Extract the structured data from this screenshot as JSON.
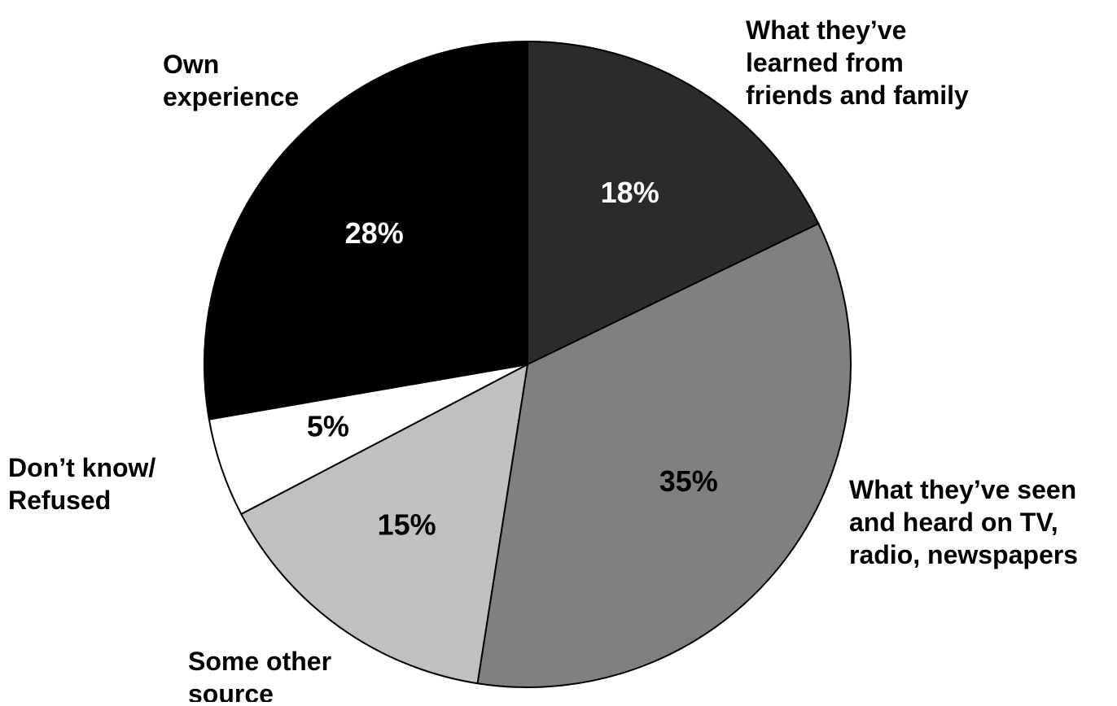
{
  "chart_data": {
    "type": "pie",
    "slices": [
      {
        "category": "What they’ve learned from friends and family",
        "lines": [
          "What they’ve",
          "learned from",
          "friends and family"
        ],
        "value": 18,
        "value_label": "18%",
        "color": "#2b2b2b",
        "label_color": "#ffffff"
      },
      {
        "category": "What they’ve seen and heard on TV, radio, newspapers",
        "lines": [
          "What they’ve seen",
          "and heard on TV,",
          "radio, newspapers"
        ],
        "value": 35,
        "value_label": "35%",
        "color": "#808080",
        "label_color": "#000000"
      },
      {
        "category": "Some other source",
        "lines": [
          "Some other",
          "source"
        ],
        "value": 15,
        "value_label": "15%",
        "color": "#c0c0c0",
        "label_color": "#000000"
      },
      {
        "category": "Don’t know/ Refused",
        "lines": [
          "Don’t know/",
          "Refused"
        ],
        "value": 5,
        "value_label": "5%",
        "color": "#ffffff",
        "label_color": "#000000"
      },
      {
        "category": "Own experience",
        "lines": [
          "Own",
          "experience"
        ],
        "value": 28,
        "value_label": "28%",
        "color": "#000000",
        "label_color": "#ffffff"
      }
    ],
    "start_angle": "top (12 o'clock)",
    "direction": "clockwise",
    "legend": "none",
    "slice_border_color": "#000000"
  }
}
